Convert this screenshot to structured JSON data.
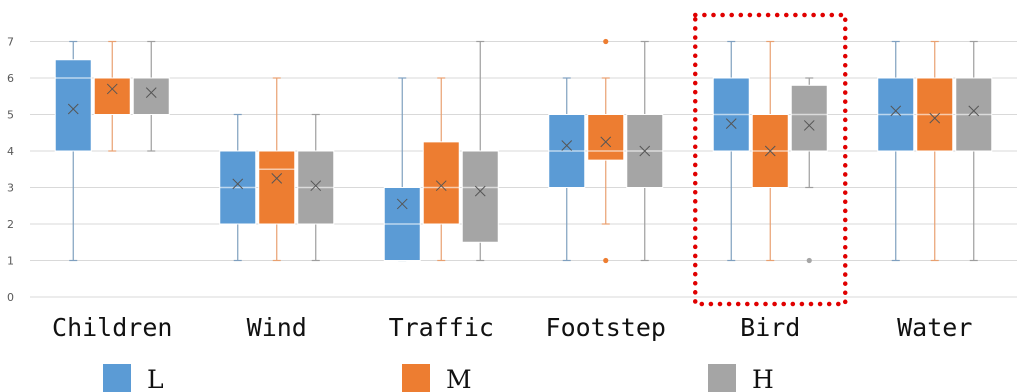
{
  "chart_data": {
    "type": "box",
    "ylim": [
      0,
      7
    ],
    "yticks": [
      0,
      1,
      2,
      3,
      4,
      5,
      6,
      7
    ],
    "grid": true,
    "legend_position": "bottom",
    "categories": [
      "Children",
      "Wind",
      "Traffic",
      "Footstep",
      "Bird",
      "Water"
    ],
    "series": [
      {
        "name": "L",
        "color": "#5b9bd5",
        "boxes": [
          {
            "min": 1,
            "q1": 4,
            "median": 6,
            "q3": 6.5,
            "max": 7,
            "mean": 5.15,
            "outliers": []
          },
          {
            "min": 1,
            "q1": 2,
            "median": 3,
            "q3": 4,
            "max": 5,
            "mean": 3.1,
            "outliers": []
          },
          {
            "min": 1,
            "q1": 1,
            "median": 2,
            "q3": 3,
            "max": 6,
            "mean": 2.55,
            "outliers": []
          },
          {
            "min": 1,
            "q1": 3,
            "median": 4,
            "q3": 5,
            "max": 6,
            "mean": 4.15,
            "outliers": []
          },
          {
            "min": 1,
            "q1": 4,
            "median": 5,
            "q3": 6,
            "max": 7,
            "mean": 4.75,
            "outliers": []
          },
          {
            "min": 1,
            "q1": 4,
            "median": 5,
            "q3": 6,
            "max": 7,
            "mean": 5.1,
            "outliers": []
          }
        ]
      },
      {
        "name": "M",
        "color": "#ed7d31",
        "boxes": [
          {
            "min": 4,
            "q1": 5,
            "median": 6,
            "q3": 6,
            "max": 7,
            "mean": 5.7,
            "outliers": []
          },
          {
            "min": 1,
            "q1": 2,
            "median": 3.5,
            "q3": 4,
            "max": 6,
            "mean": 3.25,
            "outliers": []
          },
          {
            "min": 1,
            "q1": 2,
            "median": 3,
            "q3": 4.25,
            "max": 6,
            "mean": 3.05,
            "outliers": []
          },
          {
            "min": 2,
            "q1": 3.75,
            "median": 4,
            "q3": 5,
            "max": 6,
            "mean": 4.25,
            "outliers": [
              1,
              7
            ]
          },
          {
            "min": 1,
            "q1": 3,
            "median": 4,
            "q3": 5,
            "max": 7,
            "mean": 4.0,
            "outliers": []
          },
          {
            "min": 1,
            "q1": 4,
            "median": 5,
            "q3": 6,
            "max": 7,
            "mean": 4.9,
            "outliers": []
          }
        ]
      },
      {
        "name": "H",
        "color": "#a5a5a5",
        "boxes": [
          {
            "min": 4,
            "q1": 5,
            "median": 6,
            "q3": 6,
            "max": 7,
            "mean": 5.6,
            "outliers": []
          },
          {
            "min": 1,
            "q1": 2,
            "median": 3,
            "q3": 4,
            "max": 5,
            "mean": 3.05,
            "outliers": []
          },
          {
            "min": 1,
            "q1": 1.5,
            "median": 3,
            "q3": 4,
            "max": 7,
            "mean": 2.9,
            "outliers": []
          },
          {
            "min": 1,
            "q1": 3,
            "median": 4,
            "q3": 5,
            "max": 7,
            "mean": 4.0,
            "outliers": []
          },
          {
            "min": 3,
            "q1": 4,
            "median": 5,
            "q3": 5.8,
            "max": 6,
            "mean": 4.7,
            "outliers": [
              1
            ]
          },
          {
            "min": 1,
            "q1": 4,
            "median": 5,
            "q3": 6,
            "max": 7,
            "mean": 5.1,
            "outliers": []
          }
        ]
      }
    ],
    "highlight": {
      "category": "Bird",
      "style": "red dotted rectangle",
      "color": "#e00000"
    }
  }
}
